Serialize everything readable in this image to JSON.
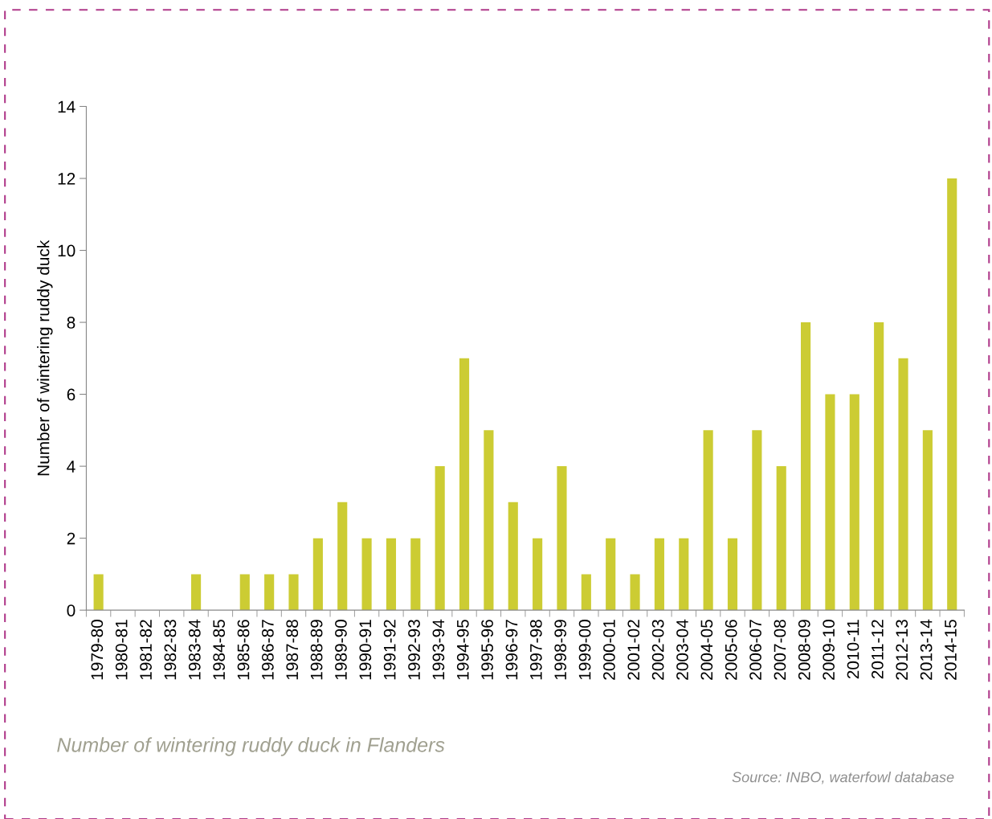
{
  "chart_data": {
    "type": "bar",
    "title": "Number of wintering ruddy duck in Flanders",
    "ylabel": "Number of wintering ruddy duck",
    "annotations": [
      "Source: INBO, waterfowl database"
    ],
    "categories": [
      "1979-80",
      "1980-81",
      "1981-82",
      "1982-83",
      "1983-84",
      "1984-85",
      "1985-86",
      "1986-87",
      "1987-88",
      "1988-89",
      "1989-90",
      "1990-91",
      "1991-92",
      "1992-93",
      "1993-94",
      "1994-95",
      "1995-96",
      "1996-97",
      "1997-98",
      "1998-99",
      "1999-00",
      "2000-01",
      "2001-02",
      "2002-03",
      "2003-04",
      "2004-05",
      "2005-06",
      "2006-07",
      "2007-08",
      "2008-09",
      "2009-10",
      "2010-11",
      "2011-12",
      "2012-13",
      "2013-14",
      "2014-15"
    ],
    "values": [
      1,
      0,
      0,
      0,
      1,
      0,
      1,
      1,
      1,
      2,
      3,
      2,
      2,
      2,
      4,
      7,
      5,
      3,
      2,
      4,
      1,
      2,
      1,
      2,
      2,
      5,
      2,
      5,
      4,
      8,
      6,
      6,
      8,
      7,
      5,
      12
    ],
    "color": "#cccc33",
    "ylim": [
      0,
      14
    ],
    "yticks": [
      0,
      2,
      4,
      6,
      8,
      10,
      12,
      14
    ],
    "grid": false,
    "legend": false
  }
}
